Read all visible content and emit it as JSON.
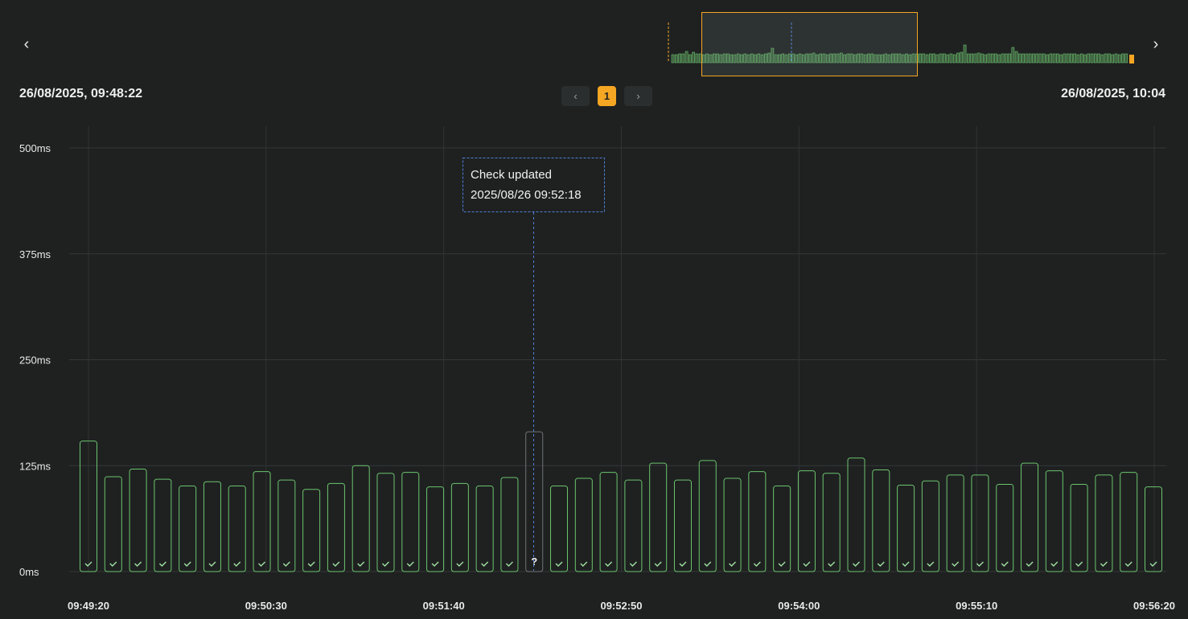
{
  "header": {
    "range_start": "26/08/2025, 09:48:22",
    "range_end": "26/08/2025, 10:04",
    "prev_icon": "chevron-left-icon",
    "next_icon": "chevron-right-icon"
  },
  "pagination": {
    "prev_icon": "chevron-left-icon",
    "current_page": "1",
    "next_icon": "chevron-right-icon"
  },
  "colors": {
    "background": "#1f2121",
    "ok_bar": "#6bc46d",
    "unknown_bar": "#6e7373",
    "accent": "#f5a623",
    "marker_line": "#4f7fd8"
  },
  "tooltip": {
    "title": "Check updated",
    "timestamp": "2025/08/26 09:52:18"
  },
  "chart_data": {
    "type": "bar",
    "ylabel": "",
    "xlabel": "",
    "ylim": [
      0,
      500
    ],
    "y_ticks": [
      "500ms",
      "375ms",
      "250ms",
      "125ms",
      "0ms"
    ],
    "y_tick_values": [
      500,
      375,
      250,
      125,
      0
    ],
    "x_ticks": [
      "09:49:20",
      "09:50:30",
      "09:51:40",
      "09:52:50",
      "09:54:00",
      "09:55:10",
      "09:56:20"
    ],
    "grid": true,
    "series": [
      {
        "values": [
          154,
          112,
          121,
          109,
          101,
          106,
          101,
          118,
          108,
          97,
          104,
          125,
          116,
          117,
          100,
          104,
          101,
          111,
          165,
          101,
          110,
          117,
          108,
          128,
          108,
          131,
          110,
          118,
          101,
          119,
          116,
          134,
          120,
          102,
          107,
          114,
          114,
          103,
          128,
          119,
          103,
          114,
          117,
          100
        ],
        "status": [
          "ok",
          "ok",
          "ok",
          "ok",
          "ok",
          "ok",
          "ok",
          "ok",
          "ok",
          "ok",
          "ok",
          "ok",
          "ok",
          "ok",
          "ok",
          "ok",
          "ok",
          "ok",
          "unknown",
          "ok",
          "ok",
          "ok",
          "ok",
          "ok",
          "ok",
          "ok",
          "ok",
          "ok",
          "ok",
          "ok",
          "ok",
          "ok",
          "ok",
          "ok",
          "ok",
          "ok",
          "ok",
          "ok",
          "ok",
          "ok",
          "ok",
          "ok",
          "ok",
          "ok"
        ]
      }
    ],
    "overview": {
      "values": [
        10,
        10,
        11,
        11,
        14,
        10,
        13,
        11,
        11,
        10,
        11,
        10,
        11,
        11,
        10,
        11,
        11,
        10,
        10,
        11,
        10,
        11,
        10,
        11,
        10,
        11,
        10,
        11,
        12,
        18,
        10,
        10,
        11,
        10,
        11,
        11,
        10,
        11,
        10,
        11,
        11,
        12,
        10,
        11,
        11,
        10,
        11,
        11,
        11,
        12,
        10,
        11,
        11,
        10,
        11,
        11,
        10,
        11,
        11,
        10,
        10,
        10,
        11,
        10,
        11,
        11,
        11,
        10,
        11,
        10,
        11,
        11,
        11,
        11,
        10,
        11,
        11,
        10,
        11,
        11,
        10,
        11,
        10,
        12,
        13,
        22,
        11,
        11,
        11,
        12,
        11,
        10,
        11,
        11,
        11,
        10,
        11,
        11,
        11,
        19,
        14,
        11,
        11,
        11,
        11,
        11,
        11,
        11,
        11,
        10,
        11,
        11,
        11,
        10,
        11,
        11,
        11,
        11,
        10,
        11,
        10,
        11,
        11,
        11,
        11,
        10,
        11,
        11,
        10,
        11,
        10,
        11,
        11
      ]
    }
  }
}
